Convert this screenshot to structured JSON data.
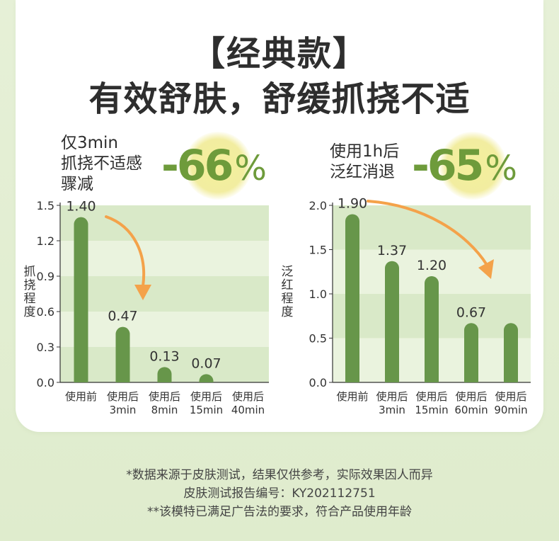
{
  "header": {
    "title": "【经典款】",
    "subtitle": "有效舒肤，舒缓抓挠不适"
  },
  "left_claim": {
    "text": "仅3min\n抓挠不适感\n骤减",
    "percent": "-66",
    "percent_sign": "%"
  },
  "right_claim": {
    "text": "使用1h后\n泛红消退",
    "percent": "-65",
    "percent_sign": "%"
  },
  "colors": {
    "bar": "#67964a",
    "arrow": "#f4a24a",
    "band_dark": "#d9e9c8",
    "band_light": "#eaf3de",
    "percent": "#6e9b3b",
    "blob": "#f2eda0"
  },
  "chart_data": [
    {
      "type": "bar",
      "ylabel": "抓挠程度",
      "ylim": [
        0,
        1.5
      ],
      "yticks": [
        "0.0",
        "0.3",
        "0.6",
        "0.9",
        "1.2",
        "1.5"
      ],
      "categories": [
        "使用前",
        "使用后\n3min",
        "使用后\n8min",
        "使用后\n15min",
        "使用后\n40min"
      ],
      "values": [
        1.4,
        0.47,
        0.13,
        0.07,
        0
      ],
      "data_labels": [
        "1.40",
        "0.47",
        "0.13",
        "0.07",
        ""
      ]
    },
    {
      "type": "bar",
      "ylabel": "泛红程度",
      "ylim": [
        0,
        2.0
      ],
      "yticks": [
        "0.0",
        "0.5",
        "1.0",
        "1.5",
        "2.0"
      ],
      "categories": [
        "使用前",
        "使用后\n3min",
        "使用后\n15min",
        "使用后\n60min",
        "使用后\n90min"
      ],
      "values": [
        1.9,
        1.37,
        1.2,
        0.67,
        0.67
      ],
      "data_labels": [
        "1.90",
        "1.37",
        "1.20",
        "0.67",
        ""
      ]
    }
  ],
  "footnotes": [
    "*数据来源于皮肤测试，结果仅供参考，实际效果因人而异",
    "皮肤测试报告编号：KY202112751",
    "**该模特已满足广告法的要求，符合产品使用年龄"
  ]
}
